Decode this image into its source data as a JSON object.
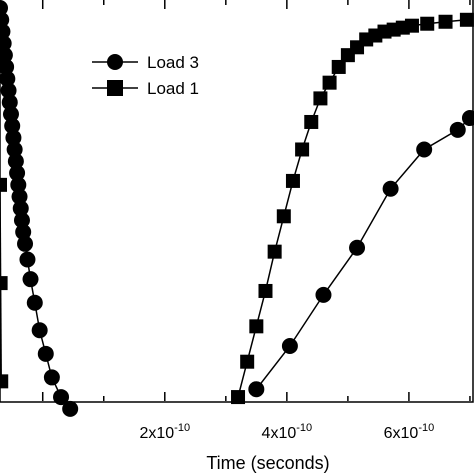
{
  "chart_data": {
    "type": "line",
    "title": "",
    "xlabel": "Time (seconds)",
    "ylabel": "",
    "x_tick_values": [
      2e-10,
      4e-10,
      6e-10
    ],
    "x_tick_labels": [
      {
        "mantissa": "2x10",
        "exponent": "-10"
      },
      {
        "mantissa": "4x10",
        "exponent": "-10"
      },
      {
        "mantissa": "6x10",
        "exponent": "-10"
      }
    ],
    "xlim": [
      -7e-11,
      7.05e-10
    ],
    "ylim": [
      0,
      1.0
    ],
    "grid": false,
    "legend_position": "top-center",
    "series": [
      {
        "name": "Load 3",
        "marker": "circle",
        "color": "#000000",
        "x": [
          3.5e-10,
          4.05e-10,
          4.6e-10,
          5.15e-10,
          5.7e-10,
          6.25e-10,
          6.8e-10,
          7e-10
        ],
        "y": [
          0.03,
          0.14,
          0.27,
          0.39,
          0.54,
          0.64,
          0.69,
          0.72
        ]
      },
      {
        "name": "Load 1",
        "marker": "square",
        "color": "#000000",
        "x": [
          3.2e-10,
          3.35e-10,
          3.5e-10,
          3.65e-10,
          3.8e-10,
          3.95e-10,
          4.1e-10,
          4.25e-10,
          4.4e-10,
          4.55e-10,
          4.7e-10,
          4.85e-10,
          5e-10,
          5.15e-10,
          5.3e-10,
          5.45e-10,
          5.6e-10,
          5.75e-10,
          5.9e-10,
          6.05e-10,
          6.3e-10,
          6.6e-10,
          6.95e-10
        ],
        "y": [
          0.01,
          0.1,
          0.19,
          0.28,
          0.38,
          0.47,
          0.56,
          0.64,
          0.71,
          0.77,
          0.81,
          0.85,
          0.88,
          0.9,
          0.92,
          0.93,
          0.94,
          0.945,
          0.95,
          0.955,
          0.96,
          0.965,
          0.97
        ]
      },
      {
        "name": "",
        "marker": "circle",
        "color": "#000000",
        "x": [
          -7e-11,
          -6.8e-11,
          -6.6e-11,
          -6.4e-11,
          -6.2e-11,
          -6e-11,
          -5.8e-11,
          -5.6e-11,
          -5.4e-11,
          -5.2e-11,
          -5e-11,
          -4.8e-11,
          -4.6e-11,
          -4.4e-11,
          -4.2e-11,
          -4e-11,
          -3.8e-11,
          -3.6e-11,
          -3.4e-11,
          -3.2e-11,
          -2.9e-11,
          -2.5e-11,
          -2e-11,
          -1.3e-11,
          -5e-12,
          5e-12,
          1.5e-11,
          3e-11,
          4.5e-11
        ],
        "y": [
          1.0,
          0.97,
          0.94,
          0.91,
          0.88,
          0.85,
          0.82,
          0.79,
          0.76,
          0.73,
          0.7,
          0.67,
          0.64,
          0.61,
          0.58,
          0.55,
          0.52,
          0.49,
          0.46,
          0.43,
          0.4,
          0.36,
          0.31,
          0.25,
          0.18,
          0.12,
          0.06,
          0.01,
          -0.02
        ]
      },
      {
        "name": "",
        "marker": "square",
        "color": "#000000",
        "x": [
          -7e-11,
          -6.9e-11,
          -6.8e-11
        ],
        "y": [
          0.55,
          0.3,
          0.05
        ]
      }
    ]
  }
}
